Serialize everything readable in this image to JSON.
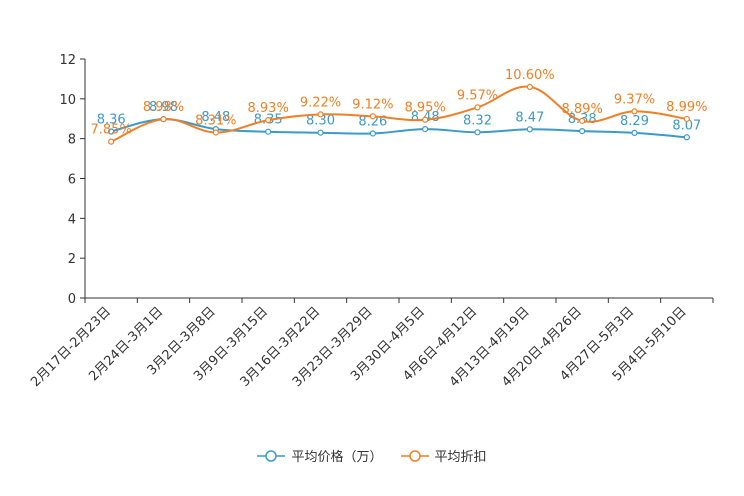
{
  "chart_data": {
    "type": "line",
    "title": "",
    "xlabel": "",
    "ylabel": "",
    "ylim": [
      0,
      12
    ],
    "yticks": [
      0,
      2,
      4,
      6,
      8,
      10,
      12
    ],
    "grid": false,
    "legend_position": "bottom",
    "categories": [
      "2月17日-2月23日",
      "2月24日-3月1日",
      "3月2日-3月8日",
      "3月9日-3月15日",
      "3月16日-3月22日",
      "3月23日-3月29日",
      "3月30日-4月5日",
      "4月6日-4月12日",
      "4月13日-4月19日",
      "4月20日-4月26日",
      "4月27日-5月3日",
      "5月4日-5月10日"
    ],
    "series": [
      {
        "name": "平均价格（万）",
        "color": "#3c9ac9",
        "values": [
          8.36,
          8.98,
          8.48,
          8.35,
          8.3,
          8.26,
          8.48,
          8.32,
          8.47,
          8.38,
          8.29,
          8.07
        ],
        "labels": [
          "8.36",
          "8.98",
          "8.48",
          "8.35",
          "8.30",
          "8.26",
          "8.48",
          "8.32",
          "8.47",
          "8.38",
          "8.29",
          "8.07"
        ]
      },
      {
        "name": "平均折扣",
        "color": "#f07f25",
        "values": [
          7.85,
          8.98,
          8.31,
          8.93,
          9.22,
          9.12,
          8.95,
          9.57,
          10.6,
          8.89,
          9.37,
          8.99
        ],
        "labels": [
          "7.85%",
          "8.98%",
          "8.31%",
          "8.93%",
          "9.22%",
          "9.12%",
          "8.95%",
          "9.57%",
          "10.60%",
          "8.89%",
          "9.37%",
          "8.99%"
        ]
      }
    ]
  }
}
